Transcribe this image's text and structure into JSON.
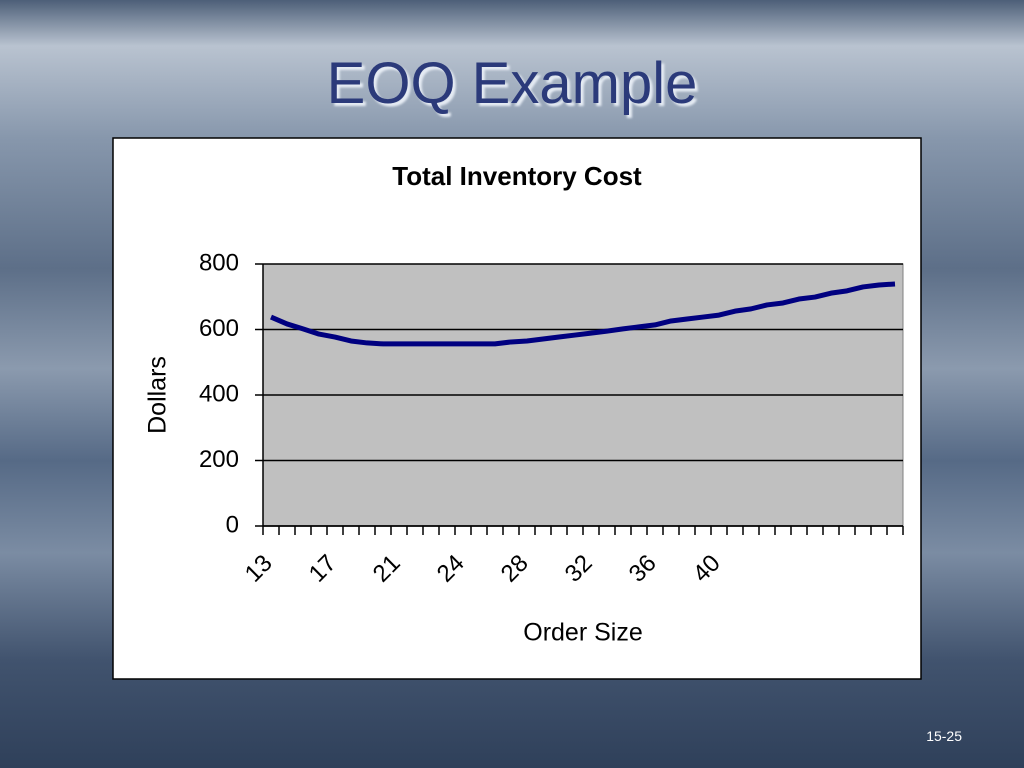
{
  "slide_title": "EOQ Example",
  "page_number": "15-25",
  "chart_data": {
    "type": "line",
    "title": "Total Inventory Cost",
    "x_label": "Order Size",
    "y_label": "Dollars",
    "categories": [
      "13",
      null,
      null,
      null,
      "17",
      null,
      null,
      null,
      "21",
      null,
      null,
      null,
      "24",
      null,
      null,
      null,
      "28",
      null,
      null,
      null,
      "32",
      null,
      null,
      null,
      "36",
      null,
      null,
      null,
      "40",
      null,
      null,
      null,
      null,
      null,
      null,
      null,
      null,
      null,
      null,
      null
    ],
    "series": [
      {
        "name": "Total Inventory Cost",
        "color": "#000080",
        "values": [
          638,
          617,
          602,
          586,
          577,
          565,
          559,
          556,
          556,
          556,
          556,
          556,
          556,
          556,
          556,
          562,
          565,
          571,
          577,
          583,
          589,
          595,
          602,
          608,
          614,
          626,
          632,
          638,
          644,
          656,
          663,
          675,
          681,
          693,
          699,
          711,
          718,
          730,
          736,
          739
        ]
      }
    ],
    "ylim": [
      0,
      800
    ],
    "yticks": [
      0,
      200,
      400,
      600,
      800
    ],
    "grid": true
  }
}
